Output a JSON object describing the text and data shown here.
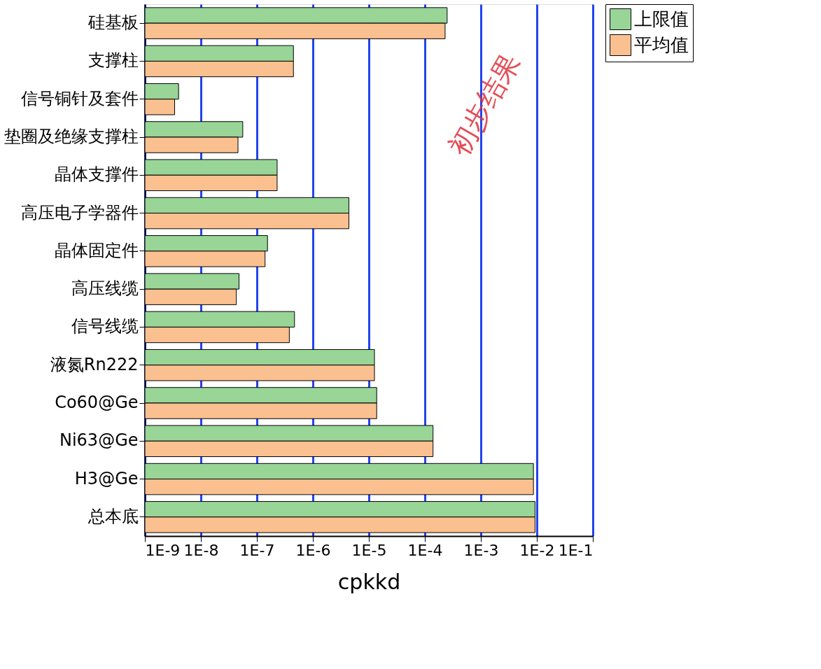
{
  "chart_data": {
    "type": "bar",
    "orientation": "horizontal",
    "log": "x",
    "xlabel": "cpkkd",
    "categories": [
      "硅基板",
      "支撑柱",
      "信号铜针及套件",
      "垫圈及绝缘支撑柱",
      "晶体支撑件",
      "高压电子学器件",
      "晶体固定件",
      "高压线缆",
      "信号线缆",
      "液氮Rn222",
      "Co60@Ge",
      "Ni63@Ge",
      "H3@Ge",
      "总本底"
    ],
    "series": [
      {
        "name": "上限值",
        "color": "#98d597",
        "values": [
          0.00025,
          4.5e-07,
          4e-09,
          5.6e-08,
          2.3e-07,
          4.4e-06,
          1.55e-07,
          4.8e-08,
          4.7e-07,
          1.26e-05,
          1.38e-05,
          0.00014,
          0.0087,
          0.0093
        ]
      },
      {
        "name": "平均值",
        "color": "#fbc08f",
        "values": [
          0.00023,
          4.5e-07,
          3.4e-09,
          4.6e-08,
          2.3e-07,
          4.4e-06,
          1.4e-07,
          4.3e-08,
          3.8e-07,
          1.26e-05,
          1.38e-05,
          0.00014,
          0.0087,
          0.0093
        ]
      }
    ],
    "xlim": [
      1e-09,
      0.1
    ],
    "xticks": [
      {
        "value": 1e-09,
        "label": "1E-9"
      },
      {
        "value": 1e-08,
        "label": "1E-8"
      },
      {
        "value": 1e-07,
        "label": "1E-7"
      },
      {
        "value": 1e-06,
        "label": "1E-6"
      },
      {
        "value": 1e-05,
        "label": "1E-5"
      },
      {
        "value": 0.0001,
        "label": "1E-4"
      },
      {
        "value": 0.001,
        "label": "1E-3"
      },
      {
        "value": 0.01,
        "label": "1E-2"
      },
      {
        "value": 0.1,
        "label": "1E-1"
      }
    ],
    "grid": "x",
    "legend": "right",
    "annotations": [
      "初步结果"
    ]
  }
}
